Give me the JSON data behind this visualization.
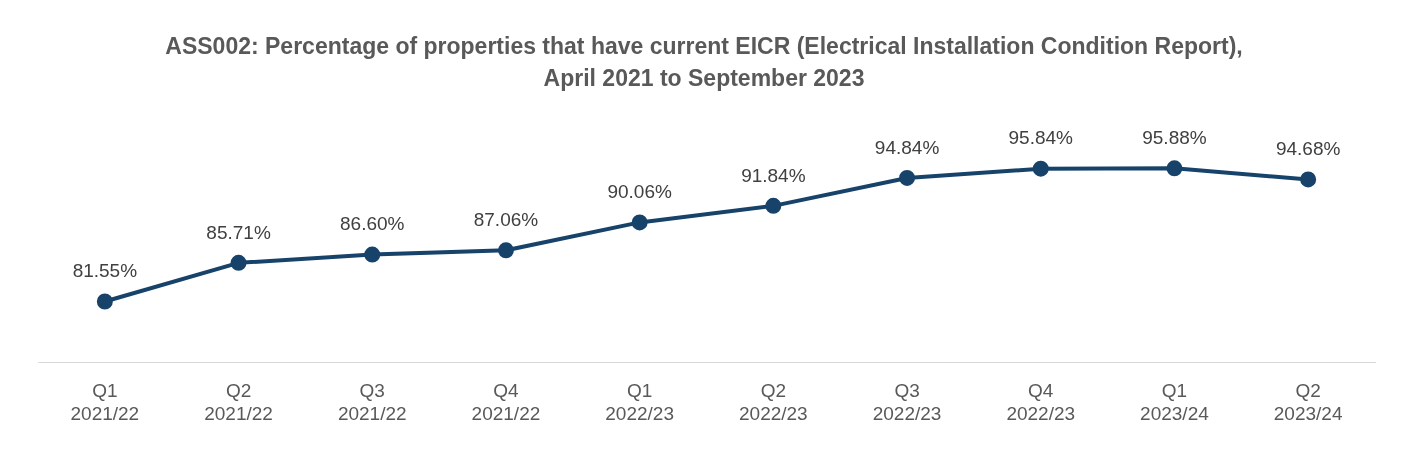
{
  "chart_data": {
    "type": "line",
    "title": "ASS002: Percentage of properties that have current EICR (Electrical Installation Condition Report), April 2021 to September 2023",
    "categories": [
      "Q1 2021/22",
      "Q2 2021/22",
      "Q3 2021/22",
      "Q4 2021/22",
      "Q1 2022/23",
      "Q2 2022/23",
      "Q3 2022/23",
      "Q4 2022/23",
      "Q1 2023/24",
      "Q2 2023/24"
    ],
    "series": [
      {
        "color": "#17436b",
        "values": [
          81.55,
          85.71,
          86.6,
          87.06,
          90.06,
          91.84,
          94.84,
          95.84,
          95.88,
          94.68
        ],
        "value_labels": [
          "81.55%",
          "85.71%",
          "86.60%",
          "87.06%",
          "90.06%",
          "91.84%",
          "94.84%",
          "95.84%",
          "95.88%",
          "94.68%"
        ]
      }
    ],
    "tick_labels": "x",
    "grid": false,
    "legend": false,
    "marker": "circle",
    "line_style": "solid"
  }
}
